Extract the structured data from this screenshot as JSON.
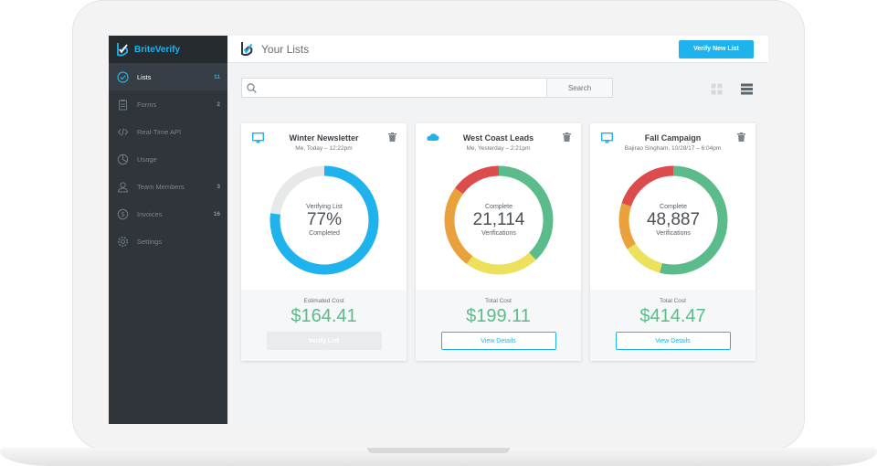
{
  "brand": {
    "name": "BriteVerify"
  },
  "sidebar": {
    "items": [
      {
        "label": "Lists",
        "count": "11",
        "icon": "check-circle-icon",
        "active": true
      },
      {
        "label": "Forms",
        "count": "2",
        "icon": "clipboard-icon",
        "active": false
      },
      {
        "label": "Real-Time API",
        "count": "",
        "icon": "code-icon",
        "active": false
      },
      {
        "label": "Usage",
        "count": "",
        "icon": "pie-chart-icon",
        "active": false
      },
      {
        "label": "Team Members",
        "count": "3",
        "icon": "user-icon",
        "active": false
      },
      {
        "label": "Invoices",
        "count": "16",
        "icon": "dollar-circle-icon",
        "active": false
      },
      {
        "label": "Settings",
        "count": "",
        "icon": "gear-icon",
        "active": false
      }
    ]
  },
  "header": {
    "title": "Your Lists",
    "primary_button": "Verify New List"
  },
  "search": {
    "placeholder": "",
    "value": "",
    "button": "Search"
  },
  "colors": {
    "accent": "#1fb3ee",
    "green": "#5cbb8a",
    "red": "#dc4c4c",
    "orange": "#e9a23b",
    "yellow": "#ede05a",
    "grey": "#e6e8e9"
  },
  "cards": [
    {
      "title": "Winter Newsletter",
      "subtitle": "Me, Today – 12:22pm",
      "type_icon": "monitor-icon",
      "status_top": "Verifying List",
      "value": "77%",
      "status_bottom": "Completed",
      "progress": 0.77,
      "cost_label": "Estimated Cost",
      "cost": "$164.41",
      "button": "Verify List",
      "button_style": "disabled"
    },
    {
      "title": "West Coast Leads",
      "subtitle": "Me, Yesterday – 2:21pm",
      "type_icon": "salesforce-cloud-icon",
      "status_top": "Complete",
      "value": "21,114",
      "status_bottom": "Verifications",
      "segments": [
        {
          "color": "#5cbb8a",
          "fraction": 0.38
        },
        {
          "color": "#ede05a",
          "fraction": 0.22
        },
        {
          "color": "#e9a23b",
          "fraction": 0.25
        },
        {
          "color": "#dc4c4c",
          "fraction": 0.15
        }
      ],
      "cost_label": "Total Cost",
      "cost": "$199.11",
      "button": "View Details",
      "button_style": "outline"
    },
    {
      "title": "Fall Campaign",
      "subtitle": "Bajirao Singham, 10/28/17 – 6:04pm",
      "type_icon": "monitor-icon",
      "status_top": "Complete",
      "value": "48,887",
      "status_bottom": "Verifications",
      "segments": [
        {
          "color": "#5cbb8a",
          "fraction": 0.54
        },
        {
          "color": "#ede05a",
          "fraction": 0.12
        },
        {
          "color": "#e9a23b",
          "fraction": 0.14
        },
        {
          "color": "#dc4c4c",
          "fraction": 0.2
        }
      ],
      "cost_label": "Total Cost",
      "cost": "$414.47",
      "button": "View Details",
      "button_style": "outline"
    }
  ]
}
